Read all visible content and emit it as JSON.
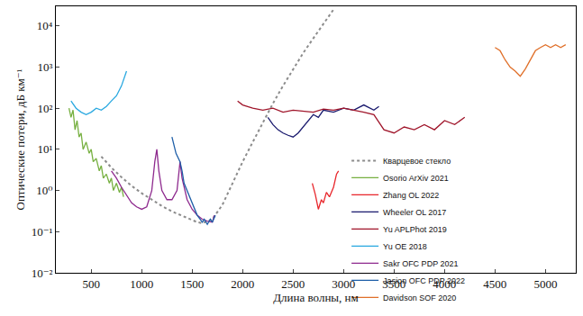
{
  "chart_data": {
    "type": "line",
    "x_label": "Длина волны, нм",
    "y_label": "Оптические потери, дБ км⁻¹",
    "log": "y",
    "grid": false,
    "xlim": [
      150,
      5300
    ],
    "ylim": [
      0.01,
      30000
    ],
    "xticks": [
      500,
      1000,
      1500,
      2000,
      2500,
      3000,
      3500,
      4000,
      4500,
      5000
    ],
    "yticks": [
      {
        "value": 0.01,
        "label": "10⁻²"
      },
      {
        "value": 0.1,
        "label": "10⁻¹"
      },
      {
        "value": 1,
        "label": "10⁰"
      },
      {
        "value": 10,
        "label": "10¹"
      },
      {
        "value": 100,
        "label": "10²"
      },
      {
        "value": 1000,
        "label": "10³"
      },
      {
        "value": 10000,
        "label": "10⁴"
      }
    ],
    "series": [
      {
        "name": "Кварцевое стекло",
        "color": "#8c8c8c",
        "line_style": "dot",
        "x": [
          600,
          700,
          800,
          900,
          1000,
          1100,
          1200,
          1300,
          1400,
          1500,
          1550,
          1600,
          1700,
          1800,
          1900,
          2000,
          2100,
          2200,
          2300,
          2400,
          2500,
          2600,
          2700,
          2800,
          2900
        ],
        "values": [
          6.7,
          3.6,
          2.1,
          1.3,
          0.86,
          0.6,
          0.42,
          0.31,
          0.24,
          0.19,
          0.17,
          0.16,
          0.2,
          0.45,
          1.5,
          5,
          15,
          45,
          130,
          350,
          900,
          2200,
          5000,
          11000,
          25000
        ]
      },
      {
        "name": "Osorio ArXiv 2021",
        "color": "#77b041",
        "line_style": "solid",
        "x": [
          280,
          300,
          320,
          340,
          360,
          380,
          400,
          420,
          450,
          480,
          500,
          520,
          550,
          580,
          600,
          620,
          650,
          680,
          700,
          720,
          750,
          780,
          800,
          820
        ],
        "values": [
          100,
          60,
          90,
          30,
          50,
          20,
          25,
          10,
          15,
          8,
          10,
          5,
          6,
          3,
          4,
          2,
          2.5,
          1.5,
          2,
          1,
          1.5,
          0.9,
          1.2,
          0.7
        ]
      },
      {
        "name": "Zhang OL 2022",
        "color": "#e8262b",
        "line_style": "solid",
        "x": [
          2690,
          2720,
          2750,
          2780,
          2800,
          2830,
          2860,
          2900,
          2930,
          2950
        ],
        "values": [
          1.5,
          0.8,
          0.35,
          0.6,
          0.5,
          0.9,
          0.7,
          1.2,
          2.5,
          3
        ]
      },
      {
        "name": "Wheeler OL 2017",
        "color": "#1a1a6e",
        "line_style": "solid",
        "x": [
          2250,
          2300,
          2350,
          2400,
          2450,
          2500,
          2550,
          2600,
          2650,
          2700,
          2750,
          2800,
          2900,
          3000,
          3100,
          3200,
          3300,
          3350
        ],
        "values": [
          60,
          40,
          30,
          25,
          22,
          20,
          25,
          35,
          50,
          70,
          60,
          90,
          80,
          100,
          90,
          120,
          90,
          110
        ]
      },
      {
        "name": "Yu APLPhot 2019",
        "color": "#a0162b",
        "line_style": "solid",
        "x": [
          1950,
          2000,
          2100,
          2200,
          2300,
          2400,
          2500,
          2600,
          2700,
          2800,
          2900,
          3000,
          3100,
          3200,
          3300,
          3400,
          3500,
          3600,
          3700,
          3800,
          3900,
          4000,
          4100,
          4200
        ],
        "values": [
          150,
          120,
          100,
          90,
          100,
          80,
          90,
          85,
          80,
          95,
          90,
          100,
          90,
          80,
          70,
          30,
          25,
          35,
          30,
          40,
          30,
          50,
          40,
          60
        ]
      },
      {
        "name": "Yu OE 2018",
        "color": "#29a8e0",
        "line_style": "solid",
        "x": [
          300,
          350,
          400,
          450,
          500,
          550,
          600,
          650,
          700,
          750,
          800,
          850
        ],
        "values": [
          150,
          100,
          80,
          70,
          80,
          100,
          90,
          110,
          150,
          200,
          350,
          800
        ]
      },
      {
        "name": "Sakr OFC PDP 2021",
        "color": "#8e2a8e",
        "line_style": "solid",
        "x": [
          700,
          750,
          800,
          850,
          900,
          950,
          1000,
          1050,
          1100,
          1130,
          1150,
          1170,
          1200,
          1250,
          1300,
          1350,
          1380,
          1400,
          1450,
          1500,
          1550,
          1600,
          1650,
          1700,
          1720
        ],
        "values": [
          3,
          2,
          1.2,
          0.8,
          0.5,
          0.4,
          0.35,
          0.4,
          1,
          5,
          10,
          3,
          1,
          0.6,
          0.6,
          1,
          5,
          2,
          0.6,
          0.35,
          0.25,
          0.2,
          0.18,
          0.17,
          0.25
        ]
      },
      {
        "name": "Jasion OFC PDP 2022",
        "color": "#1f5fa8",
        "line_style": "solid",
        "x": [
          1300,
          1340,
          1380,
          1400,
          1420,
          1450,
          1500,
          1550,
          1580,
          1600,
          1620,
          1650,
          1680,
          1700,
          1730
        ],
        "values": [
          20,
          8,
          5,
          3,
          1.5,
          1,
          0.5,
          0.25,
          0.2,
          0.17,
          0.2,
          0.15,
          0.2,
          0.17,
          0.25
        ]
      },
      {
        "name": "Davidson SOF 2020",
        "color": "#e0702a",
        "line_style": "solid",
        "x": [
          4500,
          4550,
          4600,
          4650,
          4700,
          4750,
          4800,
          4850,
          4900,
          4950,
          5000,
          5050,
          5100,
          5150,
          5200
        ],
        "values": [
          3000,
          2500,
          1500,
          1000,
          800,
          600,
          900,
          1500,
          2500,
          3000,
          3500,
          3000,
          3500,
          3000,
          3500
        ]
      }
    ]
  }
}
